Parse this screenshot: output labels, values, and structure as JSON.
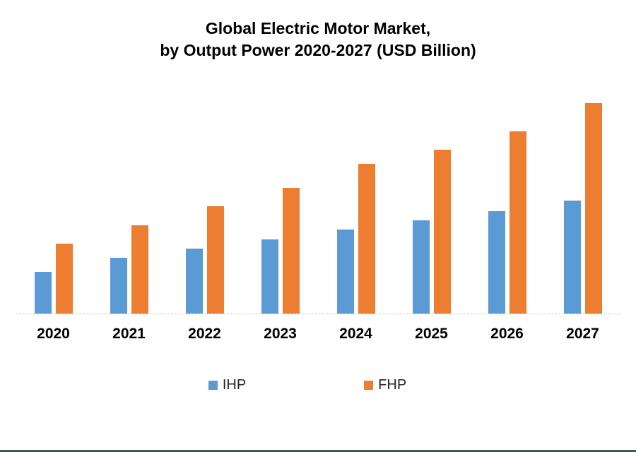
{
  "page": {
    "background": "#FFFFFF",
    "bottom_border_color": "#3E5E48"
  },
  "chart_data": {
    "type": "bar",
    "title": "Global Electric Motor Market,",
    "subtitle": "by Output Power 2020-2027 (USD Billion)",
    "xlabel": "",
    "ylabel": "",
    "categories": [
      "2020",
      "2021",
      "2022",
      "2023",
      "2024",
      "2025",
      "2026",
      "2027"
    ],
    "series": [
      {
        "name": "IHP",
        "color": "#5B9BD5",
        "values": [
          59,
          79,
          92,
          105,
          119,
          132,
          145,
          160
        ]
      },
      {
        "name": "FHP",
        "color": "#ED7D31",
        "values": [
          99,
          125,
          152,
          178,
          212,
          232,
          258,
          298
        ]
      }
    ],
    "value_unit": "relative bar height (source shows no value-axis labels)",
    "ylim": [
      0,
      320
    ],
    "grid": false,
    "value_axis_visible": false,
    "axis_line_color": "#C9C9C9",
    "legend": {
      "position": "bottom",
      "entries": [
        "IHP",
        "FHP"
      ]
    }
  }
}
